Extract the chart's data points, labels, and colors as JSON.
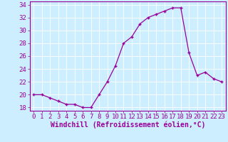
{
  "x": [
    0,
    1,
    2,
    3,
    4,
    5,
    6,
    7,
    8,
    9,
    10,
    11,
    12,
    13,
    14,
    15,
    16,
    17,
    18,
    19,
    20,
    21,
    22,
    23
  ],
  "y": [
    20,
    20,
    19.5,
    19,
    18.5,
    18.5,
    18,
    18,
    20,
    22,
    24.5,
    28,
    29,
    31,
    32,
    32.5,
    33,
    33.5,
    33.5,
    26.5,
    23,
    23.5,
    22.5,
    22
  ],
  "line_color": "#990099",
  "marker": "+",
  "xlabel": "Windchill (Refroidissement éolien,°C)",
  "xlim": [
    -0.5,
    23.5
  ],
  "ylim": [
    17.5,
    34.5
  ],
  "yticks": [
    18,
    20,
    22,
    24,
    26,
    28,
    30,
    32,
    34
  ],
  "xticks": [
    0,
    1,
    2,
    3,
    4,
    5,
    6,
    7,
    8,
    9,
    10,
    11,
    12,
    13,
    14,
    15,
    16,
    17,
    18,
    19,
    20,
    21,
    22,
    23
  ],
  "bg_color": "#cceeff",
  "grid_color": "#ffffff",
  "tick_color": "#990099",
  "label_color": "#990099",
  "font": "monospace",
  "tick_fontsize": 6.5,
  "xlabel_fontsize": 7.0
}
